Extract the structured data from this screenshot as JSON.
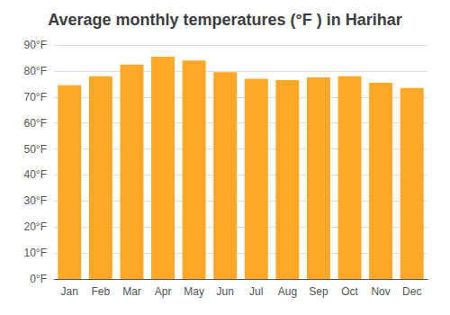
{
  "chart_data": {
    "type": "bar",
    "title": "Average monthly temperatures (°F ) in Harihar",
    "categories": [
      "Jan",
      "Feb",
      "Mar",
      "Apr",
      "May",
      "Jun",
      "Jul",
      "Aug",
      "Sep",
      "Oct",
      "Nov",
      "Dec"
    ],
    "values": [
      74.5,
      78.0,
      82.5,
      85.5,
      84.0,
      79.5,
      77.0,
      76.5,
      77.5,
      78.0,
      75.5,
      73.5
    ],
    "color": "#FFA726",
    "ylim": [
      0,
      90
    ],
    "yticks": [
      {
        "value": 0,
        "label": "0°F"
      },
      {
        "value": 10,
        "label": "10°F"
      },
      {
        "value": 20,
        "label": "20°F"
      },
      {
        "value": 30,
        "label": "30°F"
      },
      {
        "value": 40,
        "label": "40°F"
      },
      {
        "value": 50,
        "label": "50°F"
      },
      {
        "value": 60,
        "label": "60°F"
      },
      {
        "value": 70,
        "label": "70°F"
      },
      {
        "value": 80,
        "label": "80°F"
      },
      {
        "value": 90,
        "label": "90°F"
      }
    ],
    "grid": true
  }
}
